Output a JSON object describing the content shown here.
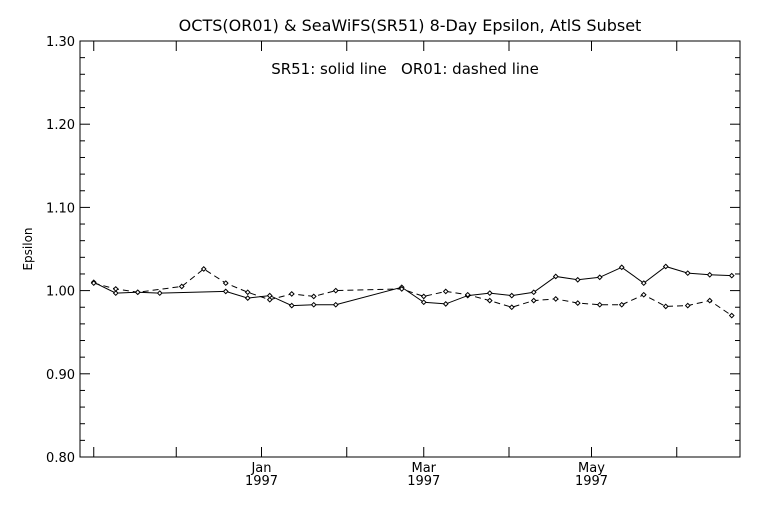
{
  "chart_data": {
    "type": "line",
    "title": "OCTS(OR01) & SeaWiFS(SR51) 8-Day Epsilon, AtlS Subset",
    "annotation": "SR51: solid line   OR01: dashed line",
    "ylabel": "Epsilon",
    "ylim": [
      0.8,
      1.3
    ],
    "y_ticks": [
      "0.80",
      "0.90",
      "1.00",
      "1.10",
      "1.20",
      "1.30"
    ],
    "x_ticks": [
      {
        "month": "Jan",
        "year": "1997"
      },
      {
        "month": "Mar",
        "year": "1997"
      },
      {
        "month": "May",
        "year": "1997"
      }
    ],
    "grid": false,
    "series": [
      {
        "name": "SR51",
        "style": "solid",
        "x": [
          "1996-11-01",
          "1996-11-09",
          "1996-11-17",
          "1996-11-25",
          "1996-12-19",
          "1996-12-27",
          "1997-01-04",
          "1997-01-12",
          "1997-01-20",
          "1997-01-28",
          "1997-02-21",
          "1997-03-01",
          "1997-03-09",
          "1997-03-17",
          "1997-03-25",
          "1997-04-02",
          "1997-04-10",
          "1997-04-18",
          "1997-04-26",
          "1997-05-04",
          "1997-05-12",
          "1997-05-20",
          "1997-05-28",
          "1997-06-05",
          "1997-06-13",
          "1997-06-21"
        ],
        "values": [
          1.01,
          0.997,
          0.998,
          0.997,
          0.999,
          0.991,
          0.994,
          0.982,
          0.983,
          0.983,
          1.004,
          0.986,
          0.984,
          0.994,
          0.997,
          0.994,
          0.998,
          1.017,
          1.013,
          1.016,
          1.028,
          1.009,
          1.029,
          1.021,
          1.019,
          1.018
        ]
      },
      {
        "name": "OR01",
        "style": "dashed",
        "x": [
          "1996-11-01",
          "1996-11-09",
          "1996-11-17",
          "1996-12-03",
          "1996-12-11",
          "1996-12-19",
          "1996-12-27",
          "1997-01-04",
          "1997-01-12",
          "1997-01-20",
          "1997-01-28",
          "1997-02-21",
          "1997-03-01",
          "1997-03-09",
          "1997-03-17",
          "1997-03-25",
          "1997-04-02",
          "1997-04-10",
          "1997-04-18",
          "1997-04-26",
          "1997-05-04",
          "1997-05-12",
          "1997-05-20",
          "1997-05-28",
          "1997-06-05",
          "1997-06-13",
          "1997-06-21"
        ],
        "values": [
          1.009,
          1.002,
          0.998,
          1.005,
          1.026,
          1.009,
          0.998,
          0.989,
          0.996,
          0.993,
          1.0,
          1.002,
          0.993,
          0.999,
          0.995,
          0.988,
          0.98,
          0.988,
          0.99,
          0.985,
          0.983,
          0.983,
          0.995,
          0.981,
          0.982,
          0.988,
          0.97
        ]
      }
    ]
  }
}
